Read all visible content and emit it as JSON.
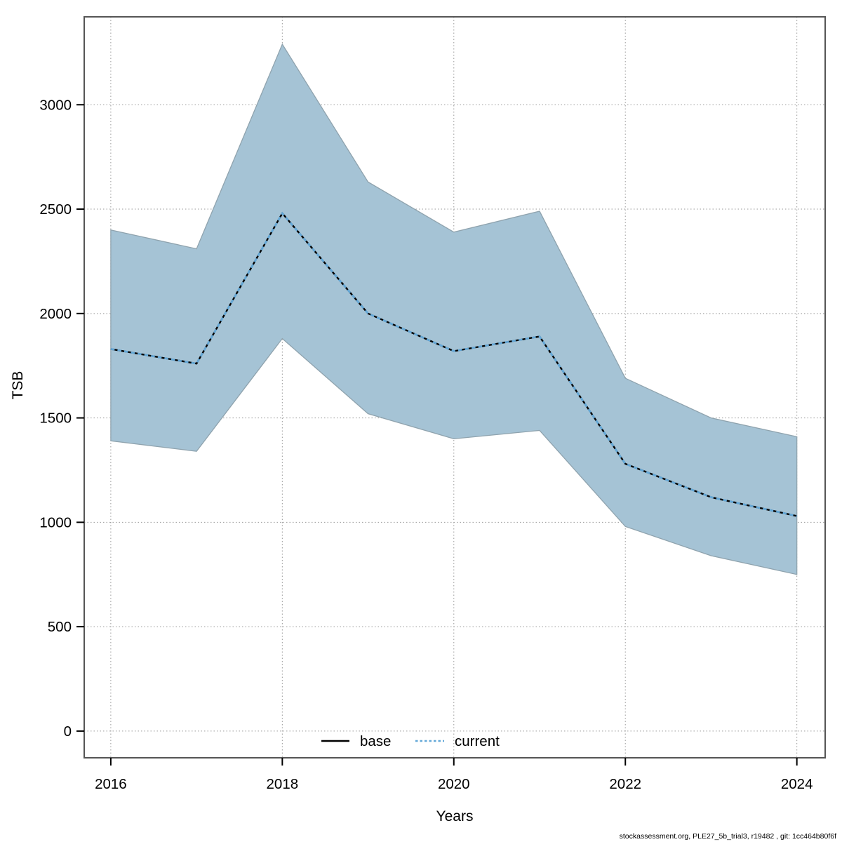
{
  "footer": "stockassessment.org, PLE27_5b_trial3, r19482 , git: 1cc464b80f6f",
  "chart_data": {
    "type": "area",
    "title": "",
    "xlabel": "Years",
    "ylabel": "TSB",
    "x": [
      2016,
      2017,
      2018,
      2019,
      2020,
      2021,
      2022,
      2023,
      2024
    ],
    "series": [
      {
        "name": "base",
        "style": "solid",
        "color": "#000000",
        "values": [
          1830,
          1760,
          2480,
          2000,
          1820,
          1890,
          1280,
          1120,
          1030
        ]
      },
      {
        "name": "current",
        "style": "dotted",
        "color": "#63A8D8",
        "values": [
          1830,
          1760,
          2480,
          2000,
          1820,
          1890,
          1280,
          1120,
          1030
        ]
      }
    ],
    "band": {
      "name": "confidence-band",
      "fill": "#A5C3D5",
      "edge": "#8FA3AE",
      "low": [
        1390,
        1340,
        1880,
        1520,
        1400,
        1440,
        980,
        840,
        750
      ],
      "high": [
        2400,
        2310,
        3290,
        2630,
        2390,
        2490,
        1690,
        1500,
        1410
      ]
    },
    "xticks": [
      2016,
      2018,
      2020,
      2022,
      2024
    ],
    "yticks": [
      0,
      500,
      1000,
      1500,
      2000,
      2500,
      3000
    ],
    "xlim": [
      2015.69,
      2024.33
    ],
    "ylim": [
      -128,
      3421
    ],
    "grid": true,
    "grid_color": "#999999",
    "border_color": "#555555",
    "legend_position": "bottom-center",
    "legend": [
      {
        "label": "base",
        "swatch": "solid-black"
      },
      {
        "label": "current",
        "swatch": "dotted-blue"
      }
    ]
  }
}
